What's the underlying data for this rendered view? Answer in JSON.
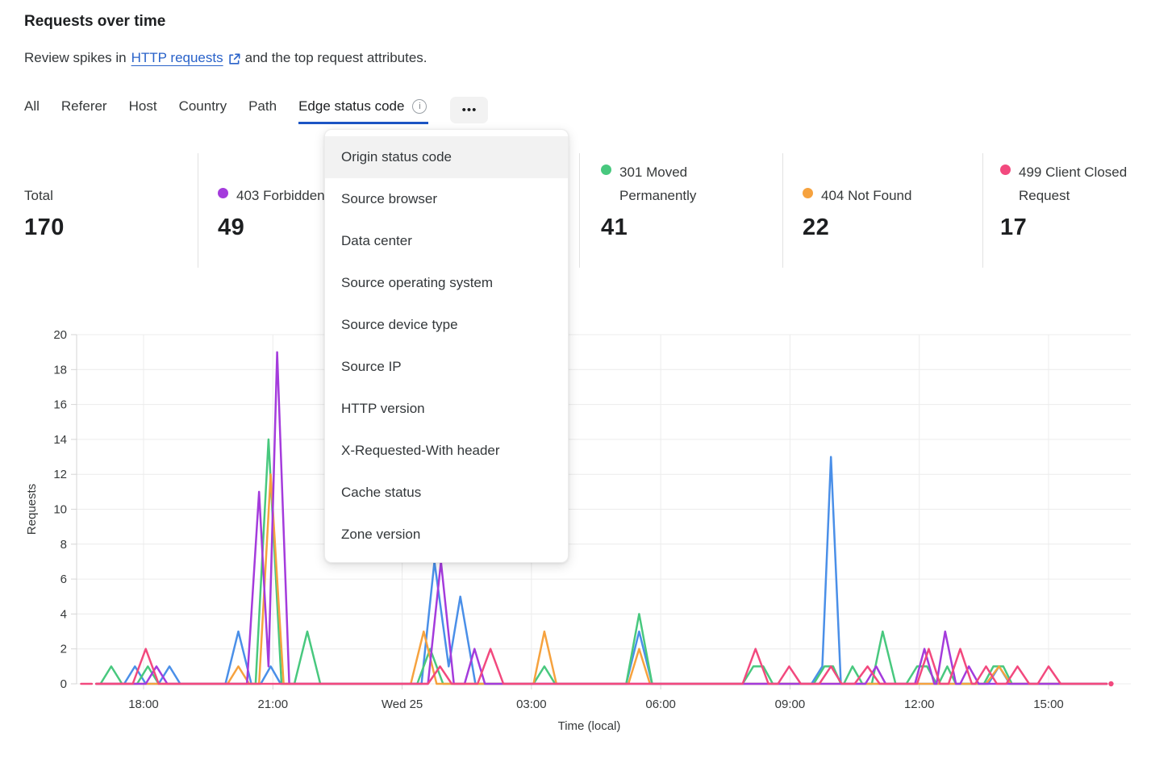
{
  "header": {
    "title": "Requests over time",
    "subtitle_prefix": "Review spikes in",
    "link_text": "HTTP requests",
    "subtitle_suffix": "and the top request attributes."
  },
  "tabs": {
    "items": [
      {
        "label": "All",
        "active": false
      },
      {
        "label": "Referer",
        "active": false
      },
      {
        "label": "Host",
        "active": false
      },
      {
        "label": "Country",
        "active": false
      },
      {
        "label": "Path",
        "active": false
      },
      {
        "label": "Edge status code",
        "active": true
      }
    ],
    "active_underline_color": "#1c55c4",
    "overflow_label": "•••",
    "info_glyph": "i"
  },
  "stats": [
    {
      "label": "Total",
      "value": "170",
      "color": null
    },
    {
      "label": "403 Forbidden",
      "value": "49",
      "color": "#a43bdc"
    },
    {
      "label": "301 Moved Permanently",
      "value": "41",
      "color": "#48c87e"
    },
    {
      "label": "404 Not Found",
      "value": "22",
      "color": "#f6a23e"
    },
    {
      "label": "499 Client Closed Request",
      "value": "17",
      "color": "#f2497e"
    }
  ],
  "menu": {
    "highlighted_index": 0,
    "items": [
      "Origin status code",
      "Source browser",
      "Data center",
      "Source operating system",
      "Source device type",
      "Source IP",
      "HTTP version",
      "X-Requested-With header",
      "Cache status",
      "Zone version"
    ]
  },
  "chart_data": {
    "type": "line",
    "title": "Requests over time",
    "xlabel": "Time (local)",
    "ylabel": "Requests",
    "ylim": [
      0,
      20
    ],
    "y_ticks": [
      0,
      2,
      4,
      6,
      8,
      10,
      12,
      14,
      16,
      18,
      20
    ],
    "x_unit": "decimal hours; 24 = Wed 25 00:00 local",
    "x_range": [
      16.55,
      40.45
    ],
    "grid": true,
    "legend_position": "top (stat cards)",
    "x_ticks": [
      {
        "t": 18,
        "label": "18:00"
      },
      {
        "t": 21,
        "label": "21:00"
      },
      {
        "t": 24,
        "label": "Wed 25"
      },
      {
        "t": 27,
        "label": "03:00"
      },
      {
        "t": 30,
        "label": "06:00"
      },
      {
        "t": 33,
        "label": "09:00"
      },
      {
        "t": 36,
        "label": "12:00"
      },
      {
        "t": 39,
        "label": "15:00"
      }
    ],
    "series": [
      {
        "name": "(label hidden by open menu)",
        "color": "#4a8fe8",
        "points": [
          [
            16.9,
            0
          ],
          [
            17.55,
            0
          ],
          [
            17.8,
            1
          ],
          [
            18.05,
            0
          ],
          [
            18.35,
            0
          ],
          [
            18.6,
            1
          ],
          [
            18.85,
            0
          ],
          [
            19.9,
            0
          ],
          [
            20.2,
            3
          ],
          [
            20.5,
            0
          ],
          [
            20.72,
            0
          ],
          [
            20.95,
            1
          ],
          [
            21.18,
            0
          ],
          [
            24.45,
            0
          ],
          [
            24.75,
            7
          ],
          [
            25.08,
            1
          ],
          [
            25.35,
            5
          ],
          [
            25.7,
            0
          ],
          [
            29.2,
            0
          ],
          [
            29.5,
            3
          ],
          [
            29.8,
            0
          ],
          [
            33.5,
            0
          ],
          [
            33.75,
            1
          ],
          [
            33.95,
            13
          ],
          [
            34.18,
            0
          ],
          [
            37.6,
            0
          ],
          [
            37.85,
            1
          ],
          [
            38.1,
            0
          ],
          [
            40.35,
            0
          ]
        ]
      },
      {
        "name": "301 Moved Permanently",
        "color": "#48c87e",
        "points": [
          [
            16.9,
            0
          ],
          [
            17.0,
            0
          ],
          [
            17.25,
            1
          ],
          [
            17.5,
            0
          ],
          [
            17.85,
            0
          ],
          [
            18.1,
            1
          ],
          [
            18.35,
            0
          ],
          [
            20.6,
            0
          ],
          [
            20.9,
            14
          ],
          [
            21.2,
            0
          ],
          [
            21.5,
            0
          ],
          [
            21.8,
            3
          ],
          [
            22.1,
            0
          ],
          [
            24.35,
            0
          ],
          [
            24.65,
            2
          ],
          [
            24.95,
            0
          ],
          [
            27.05,
            0
          ],
          [
            27.3,
            1
          ],
          [
            27.55,
            0
          ],
          [
            29.2,
            0
          ],
          [
            29.5,
            4
          ],
          [
            29.8,
            0
          ],
          [
            31.9,
            0
          ],
          [
            32.15,
            1
          ],
          [
            32.38,
            1
          ],
          [
            32.6,
            0
          ],
          [
            33.55,
            0
          ],
          [
            33.8,
            1
          ],
          [
            34.0,
            1
          ],
          [
            34.18,
            0
          ],
          [
            34.25,
            0
          ],
          [
            34.45,
            1
          ],
          [
            34.68,
            0
          ],
          [
            34.9,
            0
          ],
          [
            35.15,
            3
          ],
          [
            35.45,
            0
          ],
          [
            35.7,
            0
          ],
          [
            35.95,
            1
          ],
          [
            36.18,
            1
          ],
          [
            36.4,
            0
          ],
          [
            36.45,
            0
          ],
          [
            36.65,
            1
          ],
          [
            36.85,
            0
          ],
          [
            37.5,
            0
          ],
          [
            37.72,
            1
          ],
          [
            37.95,
            1
          ],
          [
            38.15,
            0
          ],
          [
            40.35,
            0
          ]
        ]
      },
      {
        "name": "404 Not Found",
        "color": "#f6a23e",
        "points": [
          [
            16.9,
            0
          ],
          [
            19.95,
            0
          ],
          [
            20.2,
            1
          ],
          [
            20.45,
            0
          ],
          [
            20.68,
            0
          ],
          [
            20.95,
            12
          ],
          [
            21.25,
            0
          ],
          [
            24.2,
            0
          ],
          [
            24.5,
            3
          ],
          [
            24.8,
            0
          ],
          [
            27.05,
            0
          ],
          [
            27.3,
            3
          ],
          [
            27.58,
            0
          ],
          [
            29.25,
            0
          ],
          [
            29.5,
            2
          ],
          [
            29.75,
            0
          ],
          [
            37.55,
            0
          ],
          [
            37.85,
            1
          ],
          [
            38.12,
            0
          ],
          [
            40.35,
            0
          ]
        ]
      },
      {
        "name": "403 Forbidden",
        "color": "#a43bdc",
        "points": [
          [
            16.9,
            0
          ],
          [
            18.05,
            0
          ],
          [
            18.3,
            1
          ],
          [
            18.55,
            0
          ],
          [
            20.4,
            0
          ],
          [
            20.68,
            11
          ],
          [
            20.9,
            1
          ],
          [
            21.1,
            19
          ],
          [
            21.38,
            0
          ],
          [
            24.6,
            0
          ],
          [
            24.9,
            7
          ],
          [
            25.2,
            0
          ],
          [
            25.45,
            0
          ],
          [
            25.68,
            2
          ],
          [
            25.92,
            0
          ],
          [
            34.75,
            0
          ],
          [
            35.0,
            1
          ],
          [
            35.22,
            0
          ],
          [
            35.9,
            0
          ],
          [
            36.12,
            2
          ],
          [
            36.35,
            0
          ],
          [
            36.4,
            0
          ],
          [
            36.6,
            3
          ],
          [
            36.85,
            0
          ],
          [
            36.95,
            0
          ],
          [
            37.15,
            1
          ],
          [
            37.38,
            0
          ],
          [
            40.35,
            0
          ]
        ]
      },
      {
        "name": "499 Client Closed Request",
        "color": "#f2497e",
        "lead_in_dash": [
          16.55,
          16.8
        ],
        "end_dot_t": 40.45,
        "points": [
          [
            16.9,
            0
          ],
          [
            17.75,
            0
          ],
          [
            18.05,
            2
          ],
          [
            18.35,
            0
          ],
          [
            24.6,
            0
          ],
          [
            24.88,
            1
          ],
          [
            25.15,
            0
          ],
          [
            25.75,
            0
          ],
          [
            26.05,
            2
          ],
          [
            26.35,
            0
          ],
          [
            31.9,
            0
          ],
          [
            32.2,
            2
          ],
          [
            32.5,
            0
          ],
          [
            32.72,
            0
          ],
          [
            32.98,
            1
          ],
          [
            33.25,
            0
          ],
          [
            33.68,
            0
          ],
          [
            33.95,
            1
          ],
          [
            34.2,
            0
          ],
          [
            34.5,
            0
          ],
          [
            34.8,
            1
          ],
          [
            35.08,
            0
          ],
          [
            35.95,
            0
          ],
          [
            36.22,
            2
          ],
          [
            36.48,
            0
          ],
          [
            36.68,
            0
          ],
          [
            36.95,
            2
          ],
          [
            37.22,
            0
          ],
          [
            37.3,
            0
          ],
          [
            37.55,
            1
          ],
          [
            37.8,
            0
          ],
          [
            38.02,
            0
          ],
          [
            38.28,
            1
          ],
          [
            38.55,
            0
          ],
          [
            38.75,
            0
          ],
          [
            39.0,
            1
          ],
          [
            39.28,
            0
          ],
          [
            40.35,
            0
          ]
        ]
      }
    ]
  }
}
